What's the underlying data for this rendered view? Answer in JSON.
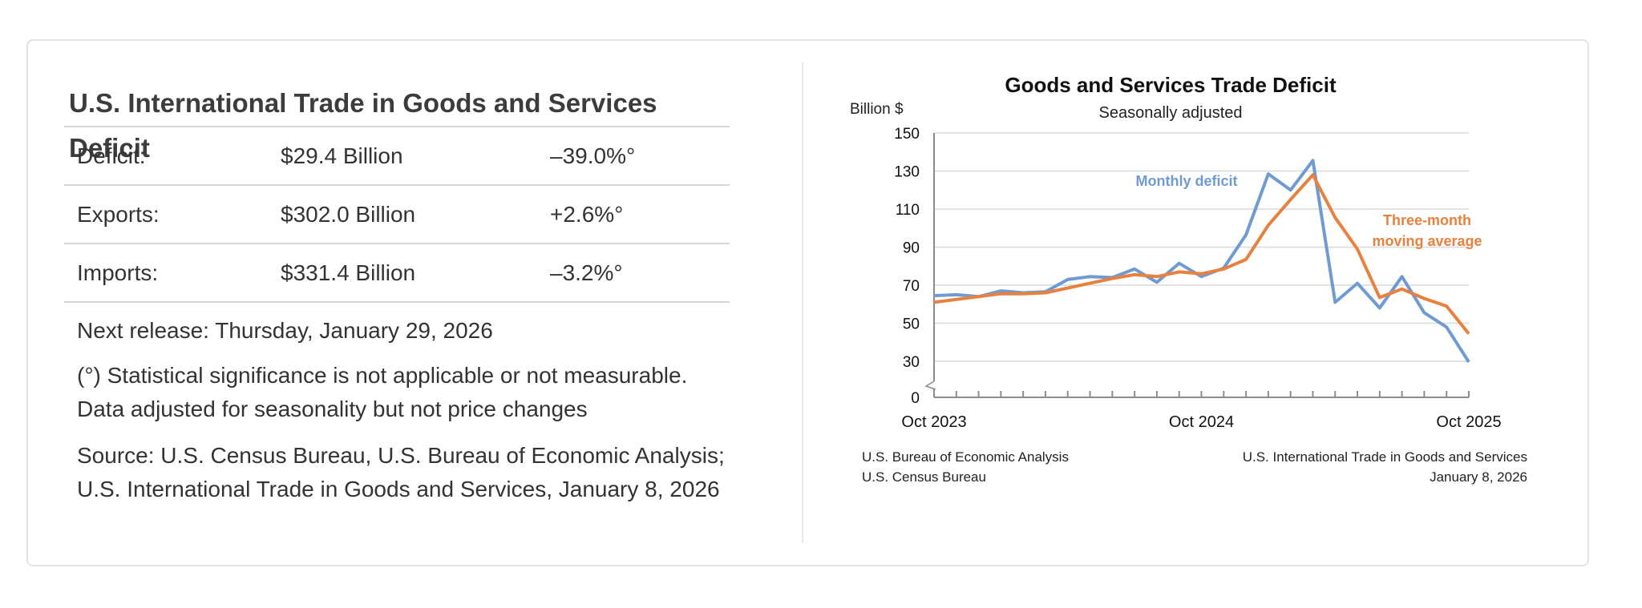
{
  "summary": {
    "title": "U.S. International Trade in Goods and Services Deficit",
    "rows": [
      {
        "label": "Deficit:",
        "value": "$29.4 Billion",
        "change": "–39.0%°"
      },
      {
        "label": "Exports:",
        "value": "$302.0 Billion",
        "change": "+2.6%°"
      },
      {
        "label": "Imports:",
        "value": "$331.4 Billion",
        "change": "–3.2%°"
      }
    ],
    "next_release": "Next release: Thursday, January 29, 2026",
    "significance_note": "(°) Statistical significance is not applicable or not measurable.",
    "adjustment_note": "Data adjusted for seasonality but not price changes",
    "source_line1": "Source: U.S. Census Bureau, U.S. Bureau of Economic Analysis;",
    "source_line2": "U.S. International Trade in Goods and Services, January 8, 2026"
  },
  "chart_data": {
    "type": "line",
    "title": "Goods and Services Trade Deficit",
    "subtitle": "Seasonally adjusted",
    "ylabel": "Billion $",
    "ylim": [
      0,
      150
    ],
    "y_break": true,
    "yticks": [
      0,
      30,
      50,
      70,
      90,
      110,
      130,
      150
    ],
    "x": [
      "Oct 2023",
      "Nov 2023",
      "Dec 2023",
      "Jan 2024",
      "Feb 2024",
      "Mar 2024",
      "Apr 2024",
      "May 2024",
      "Jun 2024",
      "Jul 2024",
      "Aug 2024",
      "Sep 2024",
      "Oct 2024",
      "Nov 2024",
      "Dec 2024",
      "Jan 2025",
      "Feb 2025",
      "Mar 2025",
      "Apr 2025",
      "May 2025",
      "Jun 2025",
      "Jul 2025",
      "Aug 2025",
      "Sep 2025",
      "Oct 2025"
    ],
    "xtick_labels": [
      "Oct 2023",
      "Oct 2024",
      "Oct 2025"
    ],
    "series": [
      {
        "name": "Monthly deficit",
        "label_lines": [
          "Monthly deficit"
        ],
        "color": "#6f9bd1",
        "values": [
          64.5,
          65.0,
          64.0,
          67.0,
          66.0,
          66.5,
          73.0,
          74.5,
          74.0,
          78.5,
          71.5,
          81.5,
          74.5,
          79.0,
          96.5,
          128.5,
          120.0,
          135.5,
          61.0,
          71.0,
          58.0,
          74.5,
          55.5,
          48.0,
          29.4
        ]
      },
      {
        "name": "Three-month moving average",
        "label_lines": [
          "Three-month",
          "moving average"
        ],
        "color": "#e8813e",
        "values": [
          61.0,
          62.5,
          64.0,
          65.5,
          65.5,
          66.0,
          68.5,
          71.0,
          73.5,
          75.5,
          74.5,
          77.0,
          76.0,
          78.5,
          83.5,
          101.5,
          115.0,
          128.0,
          105.5,
          89.0,
          63.5,
          68.0,
          63.0,
          59.0,
          44.5
        ]
      }
    ],
    "footer_left": [
      "U.S. Bureau of Economic Analysis",
      "U.S. Census Bureau"
    ],
    "footer_right": [
      "U.S. International Trade in Goods and Services",
      "January 8, 2026"
    ]
  }
}
